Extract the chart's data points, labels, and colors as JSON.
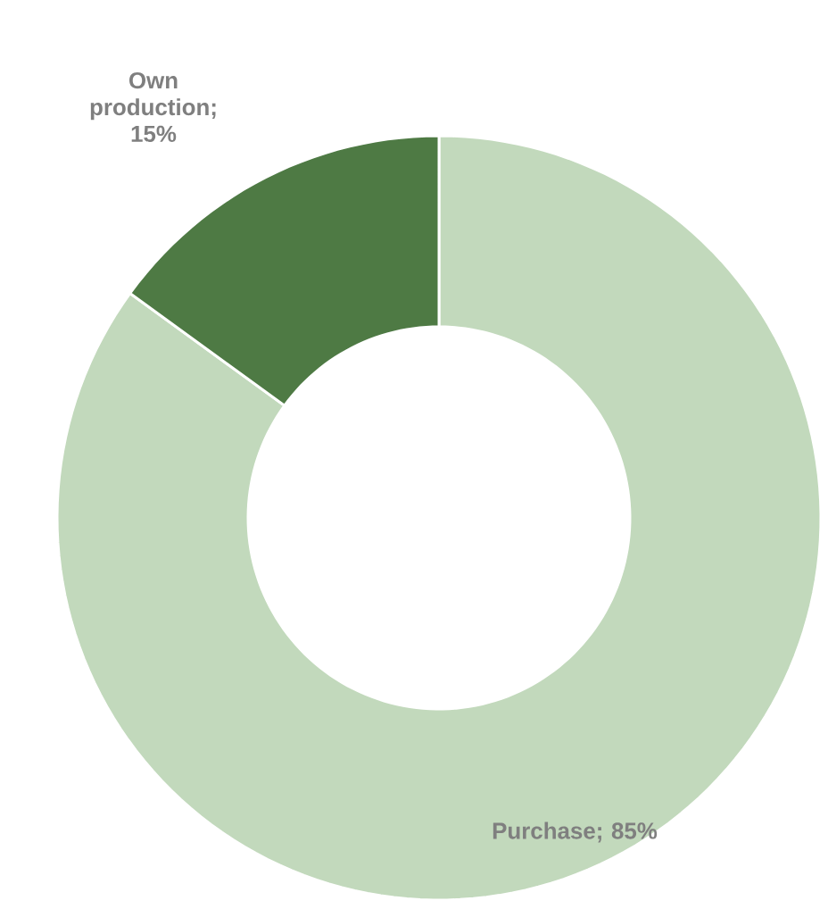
{
  "chart_data": {
    "type": "donut",
    "categories": [
      null,
      null
    ],
    "values": [
      85,
      15
    ],
    "value_labels": [
      "Purchase; 85%",
      "Own production; 15%"
    ],
    "colors": [
      "#c2d9bc",
      "#4e7a44"
    ]
  }
}
